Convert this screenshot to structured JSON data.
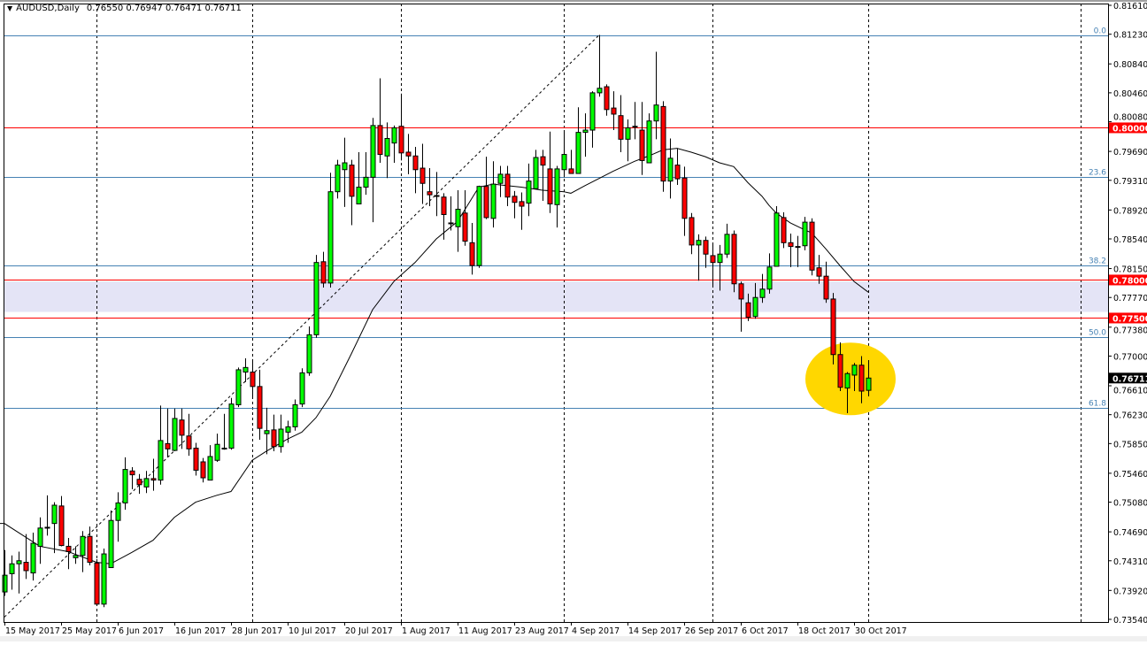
{
  "header": {
    "symbol": "AUDUSD,Daily",
    "ohlc_text": "0.76550 0.76947 0.76471 0.76711",
    "menu_icon": "triangle-down-icon"
  },
  "colors": {
    "bull": "#00FF00",
    "bear": "#FF0000",
    "outline": "#000000",
    "fib": "#4682B4",
    "level": "#FF0000",
    "zone": "#E4E4F6",
    "highlight": "#FFD700",
    "ma": "#000000",
    "last_price_bg": "#000000"
  },
  "chart_data": {
    "type": "candlestick",
    "title": "AUDUSD,Daily",
    "ylim": [
      0.7354,
      0.8161
    ],
    "grid": false,
    "y_ticks": [
      "0.81610",
      "0.81230",
      "0.80840",
      "0.80460",
      "0.80080",
      "0.79690",
      "0.79310",
      "0.78920",
      "0.78540",
      "0.78150",
      "0.77770",
      "0.77380",
      "0.77000",
      "0.76610",
      "0.76230",
      "0.75850",
      "0.75460",
      "0.75080",
      "0.74690",
      "0.74310",
      "0.73920",
      "0.73540"
    ],
    "x_labels": [
      {
        "bar": 0,
        "label": "15 May 2017"
      },
      {
        "bar": 8,
        "label": "25 May 2017"
      },
      {
        "bar": 16,
        "label": "6 Jun 2017"
      },
      {
        "bar": 24,
        "label": "16 Jun 2017"
      },
      {
        "bar": 32,
        "label": "28 Jun 2017"
      },
      {
        "bar": 40,
        "label": "10 Jul 2017"
      },
      {
        "bar": 48,
        "label": "20 Jul 2017"
      },
      {
        "bar": 56,
        "label": "1 Aug 2017"
      },
      {
        "bar": 64,
        "label": "11 Aug 2017"
      },
      {
        "bar": 72,
        "label": "23 Aug 2017"
      },
      {
        "bar": 80,
        "label": "4 Sep 2017"
      },
      {
        "bar": 88,
        "label": "14 Sep 2017"
      },
      {
        "bar": 96,
        "label": "26 Sep 2017"
      },
      {
        "bar": 104,
        "label": "6 Oct 2017"
      },
      {
        "bar": 112,
        "label": "18 Oct 2017"
      },
      {
        "bar": 120,
        "label": "30 Oct 2017"
      }
    ],
    "month_separators": [
      13,
      35,
      56,
      79,
      100,
      122,
      152
    ],
    "ohlc": [
      [
        0.739,
        0.7445,
        0.7385,
        0.7412
      ],
      [
        0.7414,
        0.7438,
        0.7393,
        0.7427
      ],
      [
        0.7427,
        0.7443,
        0.7388,
        0.7431
      ],
      [
        0.7429,
        0.7466,
        0.7407,
        0.7418
      ],
      [
        0.7415,
        0.7468,
        0.7405,
        0.7454
      ],
      [
        0.745,
        0.7488,
        0.7427,
        0.7474
      ],
      [
        0.7474,
        0.7517,
        0.7464,
        0.7475
      ],
      [
        0.748,
        0.7508,
        0.7441,
        0.7504
      ],
      [
        0.7503,
        0.7516,
        0.745,
        0.7451
      ],
      [
        0.745,
        0.7461,
        0.742,
        0.7443
      ],
      [
        0.7435,
        0.745,
        0.7427,
        0.7438
      ],
      [
        0.7438,
        0.747,
        0.7416,
        0.7463
      ],
      [
        0.7463,
        0.7476,
        0.7425,
        0.7429
      ],
      [
        0.7428,
        0.7433,
        0.7372,
        0.7374
      ],
      [
        0.7374,
        0.7447,
        0.737,
        0.744
      ],
      [
        0.7422,
        0.7497,
        0.7422,
        0.7484
      ],
      [
        0.7484,
        0.7521,
        0.7456,
        0.7507
      ],
      [
        0.7507,
        0.7567,
        0.7498,
        0.7551
      ],
      [
        0.7549,
        0.7554,
        0.7525,
        0.7544
      ],
      [
        0.7538,
        0.7545,
        0.7519,
        0.7531
      ],
      [
        0.7528,
        0.7549,
        0.752,
        0.7539
      ],
      [
        0.7539,
        0.7565,
        0.7523,
        0.7537
      ],
      [
        0.7537,
        0.7635,
        0.7531,
        0.7589
      ],
      [
        0.7585,
        0.7631,
        0.7567,
        0.7578
      ],
      [
        0.7576,
        0.7631,
        0.7575,
        0.7618
      ],
      [
        0.7616,
        0.7631,
        0.7578,
        0.7596
      ],
      [
        0.7595,
        0.7624,
        0.7569,
        0.7578
      ],
      [
        0.7579,
        0.7586,
        0.7543,
        0.755
      ],
      [
        0.7561,
        0.7566,
        0.7534,
        0.754
      ],
      [
        0.7537,
        0.7583,
        0.7537,
        0.7568
      ],
      [
        0.7563,
        0.7598,
        0.7561,
        0.7584
      ],
      [
        0.7578,
        0.7624,
        0.7577,
        0.7579
      ],
      [
        0.7579,
        0.7645,
        0.7577,
        0.7637
      ],
      [
        0.7636,
        0.7685,
        0.7633,
        0.7682
      ],
      [
        0.7679,
        0.7697,
        0.7666,
        0.7685
      ],
      [
        0.7679,
        0.7696,
        0.7645,
        0.766
      ],
      [
        0.766,
        0.7682,
        0.759,
        0.7605
      ],
      [
        0.7598,
        0.7632,
        0.7571,
        0.7602
      ],
      [
        0.7603,
        0.7623,
        0.7575,
        0.7581
      ],
      [
        0.7581,
        0.7623,
        0.7573,
        0.7604
      ],
      [
        0.76,
        0.7615,
        0.7586,
        0.7607
      ],
      [
        0.7607,
        0.7643,
        0.7602,
        0.7636
      ],
      [
        0.7637,
        0.7684,
        0.7633,
        0.7678
      ],
      [
        0.7678,
        0.7739,
        0.7674,
        0.7728
      ],
      [
        0.7728,
        0.7833,
        0.7724,
        0.7823
      ],
      [
        0.7824,
        0.7837,
        0.779,
        0.7796
      ],
      [
        0.7796,
        0.7941,
        0.779,
        0.7916
      ],
      [
        0.7916,
        0.7958,
        0.7907,
        0.7951
      ],
      [
        0.7945,
        0.7987,
        0.7896,
        0.7954
      ],
      [
        0.7951,
        0.7958,
        0.7872,
        0.791
      ],
      [
        0.79,
        0.7968,
        0.79,
        0.7922
      ],
      [
        0.7922,
        0.7968,
        0.7912,
        0.7935
      ],
      [
        0.7935,
        0.8013,
        0.7876,
        0.8003
      ],
      [
        0.8003,
        0.8065,
        0.7954,
        0.7965
      ],
      [
        0.7963,
        0.8007,
        0.7934,
        0.7986
      ],
      [
        0.798,
        0.8003,
        0.7954,
        0.8
      ],
      [
        0.8002,
        0.8045,
        0.7957,
        0.7967
      ],
      [
        0.7968,
        0.7992,
        0.7939,
        0.7963
      ],
      [
        0.7963,
        0.7975,
        0.7914,
        0.7945
      ],
      [
        0.7947,
        0.7979,
        0.79,
        0.7927
      ],
      [
        0.7916,
        0.7947,
        0.7897,
        0.7912
      ],
      [
        0.791,
        0.7942,
        0.7884,
        0.7911
      ],
      [
        0.7909,
        0.7914,
        0.7853,
        0.7886
      ],
      [
        0.7874,
        0.791,
        0.7865,
        0.7875
      ],
      [
        0.787,
        0.7918,
        0.7837,
        0.7893
      ],
      [
        0.7888,
        0.7918,
        0.7845,
        0.7851
      ],
      [
        0.7849,
        0.7875,
        0.7807,
        0.7819
      ],
      [
        0.7819,
        0.7924,
        0.7816,
        0.7923
      ],
      [
        0.7923,
        0.7962,
        0.788,
        0.7882
      ],
      [
        0.7881,
        0.7956,
        0.7869,
        0.7926
      ],
      [
        0.7927,
        0.795,
        0.7909,
        0.7939
      ],
      [
        0.7939,
        0.795,
        0.7897,
        0.7909
      ],
      [
        0.791,
        0.7917,
        0.7881,
        0.7902
      ],
      [
        0.7903,
        0.7915,
        0.7866,
        0.7897
      ],
      [
        0.7901,
        0.7953,
        0.7884,
        0.793
      ],
      [
        0.792,
        0.7971,
        0.792,
        0.7961
      ],
      [
        0.7962,
        0.7971,
        0.7904,
        0.7951
      ],
      [
        0.7946,
        0.7995,
        0.7888,
        0.79
      ],
      [
        0.7899,
        0.795,
        0.7869,
        0.7946
      ],
      [
        0.7945,
        0.7997,
        0.7935,
        0.7965
      ],
      [
        0.7946,
        0.7971,
        0.794,
        0.794
      ],
      [
        0.794,
        0.8027,
        0.794,
        0.7994
      ],
      [
        0.7994,
        0.8019,
        0.7962,
        0.7997
      ],
      [
        0.7997,
        0.8048,
        0.7974,
        0.8046
      ],
      [
        0.8046,
        0.8122,
        0.8041,
        0.8052
      ],
      [
        0.8054,
        0.8057,
        0.8016,
        0.8024
      ],
      [
        0.8026,
        0.8048,
        0.7997,
        0.8018
      ],
      [
        0.8016,
        0.8043,
        0.7968,
        0.7985
      ],
      [
        0.7985,
        0.8011,
        0.7956,
        0.8
      ],
      [
        0.8002,
        0.8034,
        0.7985,
        0.8001
      ],
      [
        0.7997,
        0.8034,
        0.7938,
        0.7957
      ],
      [
        0.7954,
        0.8019,
        0.7954,
        0.8009
      ],
      [
        0.8009,
        0.81,
        0.7985,
        0.803
      ],
      [
        0.8028,
        0.8035,
        0.7916,
        0.793
      ],
      [
        0.793,
        0.7986,
        0.7907,
        0.796
      ],
      [
        0.7951,
        0.7973,
        0.7925,
        0.7933
      ],
      [
        0.7934,
        0.7949,
        0.7858,
        0.7881
      ],
      [
        0.7882,
        0.7888,
        0.7834,
        0.7846
      ],
      [
        0.7846,
        0.786,
        0.7799,
        0.7852
      ],
      [
        0.7852,
        0.7857,
        0.7816,
        0.7834
      ],
      [
        0.7832,
        0.7849,
        0.7791,
        0.7823
      ],
      [
        0.7823,
        0.7846,
        0.7786,
        0.7834
      ],
      [
        0.7834,
        0.7874,
        0.7829,
        0.786
      ],
      [
        0.786,
        0.7865,
        0.7784,
        0.7795
      ],
      [
        0.7795,
        0.7798,
        0.7732,
        0.7775
      ],
      [
        0.777,
        0.7782,
        0.7746,
        0.7751
      ],
      [
        0.7752,
        0.7796,
        0.7749,
        0.7777
      ],
      [
        0.7777,
        0.7808,
        0.777,
        0.7788
      ],
      [
        0.7788,
        0.7835,
        0.7782,
        0.7817
      ],
      [
        0.7818,
        0.7897,
        0.7818,
        0.7888
      ],
      [
        0.7882,
        0.7889,
        0.7842,
        0.7849
      ],
      [
        0.7849,
        0.7861,
        0.7817,
        0.7844
      ],
      [
        0.7844,
        0.7858,
        0.7817,
        0.7844
      ],
      [
        0.7845,
        0.7883,
        0.7839,
        0.7876
      ],
      [
        0.7876,
        0.7881,
        0.7806,
        0.7813
      ],
      [
        0.7816,
        0.7833,
        0.7795,
        0.7805
      ],
      [
        0.7805,
        0.7824,
        0.777,
        0.7775
      ],
      [
        0.7775,
        0.7783,
        0.7689,
        0.7702
      ],
      [
        0.7702,
        0.7718,
        0.7654,
        0.7659
      ],
      [
        0.7658,
        0.7679,
        0.7625,
        0.7677
      ],
      [
        0.7675,
        0.7691,
        0.7654,
        0.7688
      ],
      [
        0.7688,
        0.77,
        0.7638,
        0.7654
      ],
      [
        0.7655,
        0.76947,
        0.76471,
        0.76711
      ]
    ],
    "moving_average": [
      [
        0,
        0.748
      ],
      [
        5,
        0.745
      ],
      [
        9,
        0.7443
      ],
      [
        13,
        0.7429
      ],
      [
        15,
        0.7427
      ],
      [
        18,
        0.7442
      ],
      [
        21,
        0.7458
      ],
      [
        24,
        0.7488
      ],
      [
        27,
        0.7508
      ],
      [
        30,
        0.7517
      ],
      [
        32,
        0.7522
      ],
      [
        35,
        0.7563
      ],
      [
        37,
        0.7575
      ],
      [
        40,
        0.7591
      ],
      [
        42,
        0.76
      ],
      [
        44,
        0.7619
      ],
      [
        46,
        0.7647
      ],
      [
        49,
        0.7703
      ],
      [
        52,
        0.7761
      ],
      [
        55,
        0.7798
      ],
      [
        58,
        0.7823
      ],
      [
        61,
        0.7854
      ],
      [
        64,
        0.7877
      ],
      [
        67,
        0.7922
      ],
      [
        69,
        0.7926
      ],
      [
        73,
        0.7922
      ],
      [
        76,
        0.7918
      ],
      [
        79,
        0.7916
      ],
      [
        80,
        0.7914
      ],
      [
        82,
        0.7924
      ],
      [
        86,
        0.7943
      ],
      [
        89,
        0.7956
      ],
      [
        91,
        0.7963
      ],
      [
        93,
        0.7971
      ],
      [
        95,
        0.7973
      ],
      [
        97,
        0.7968
      ],
      [
        99,
        0.7962
      ],
      [
        101,
        0.7954
      ],
      [
        103,
        0.7949
      ],
      [
        105,
        0.7928
      ],
      [
        107,
        0.791
      ],
      [
        108,
        0.7898
      ],
      [
        109,
        0.7888
      ],
      [
        111,
        0.7875
      ],
      [
        113,
        0.7866
      ],
      [
        114,
        0.7862
      ],
      [
        116,
        0.7841
      ],
      [
        118,
        0.7819
      ],
      [
        120,
        0.7798
      ],
      [
        122,
        0.7784
      ]
    ],
    "fib_levels": [
      {
        "label": "0.0",
        "price": 0.8122
      },
      {
        "label": "23.6",
        "price": 0.7935
      },
      {
        "label": "38.2",
        "price": 0.7819
      },
      {
        "label": "50.0",
        "price": 0.7725
      },
      {
        "label": "61.8",
        "price": 0.7632
      }
    ],
    "fib_trendline": {
      "from": [
        0,
        0.7357
      ],
      "to": [
        84,
        0.8122
      ]
    },
    "horizontal_levels": [
      {
        "label": "0.80000",
        "price": 0.8
      },
      {
        "label": "0.78000",
        "price": 0.78
      },
      {
        "label": "0.77500",
        "price": 0.775
      }
    ],
    "zone": [
      0.7758,
      0.7798
    ],
    "last_price": {
      "label": "0.76711",
      "price": 0.76711
    },
    "highlight": {
      "bars": [
        117,
        122
      ],
      "price_range": [
        0.7625,
        0.7715
      ]
    }
  }
}
